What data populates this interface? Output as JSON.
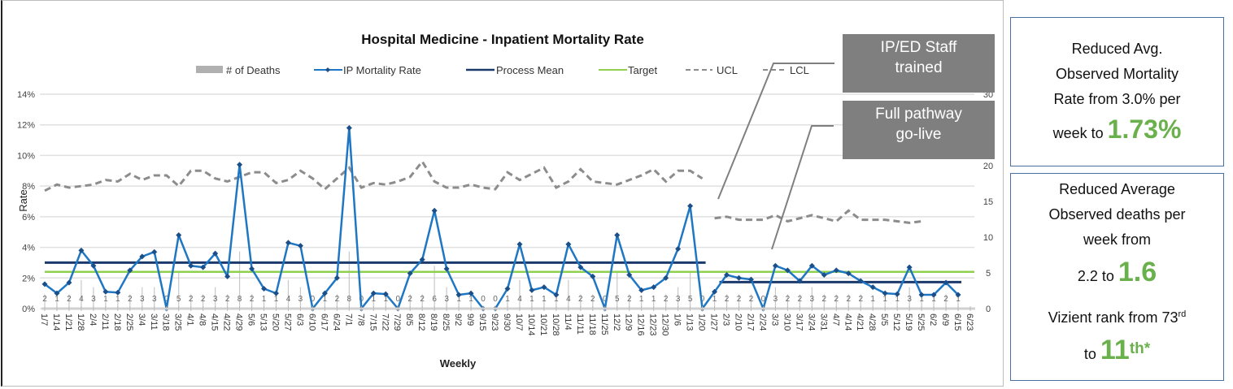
{
  "chart_data": {
    "type": "line",
    "title": "Hospital Medicine - Inpatient Mortality Rate",
    "xlabel": "Weekly",
    "ylabel": "Rate",
    "ylim": [
      0,
      14
    ],
    "y_ticks": [
      "0%",
      "2%",
      "4%",
      "6%",
      "8%",
      "10%",
      "12%",
      "14%"
    ],
    "y2lim": [
      0,
      30
    ],
    "y2_ticks": [
      "0",
      "5",
      "10",
      "15",
      "20",
      "25",
      "30"
    ],
    "grid": true,
    "legend_position": "top",
    "legend": [
      "# of Deaths",
      "IP Mortality Rate",
      "Process Mean",
      "Target",
      "UCL",
      "LCL"
    ],
    "categories": [
      "1/7",
      "1/14",
      "1/21",
      "1/28",
      "2/4",
      "2/11",
      "2/18",
      "2/25",
      "3/4",
      "3/11",
      "3/18",
      "3/25",
      "4/1",
      "4/8",
      "4/15",
      "4/22",
      "4/29",
      "5/6",
      "5/13",
      "5/20",
      "5/27",
      "6/3",
      "6/10",
      "6/17",
      "6/24",
      "7/1",
      "7/8",
      "7/15",
      "7/22",
      "7/29",
      "8/5",
      "8/12",
      "8/19",
      "8/25",
      "9/2",
      "9/9",
      "9/15",
      "9/23",
      "9/30",
      "10/7",
      "10/14",
      "10/21",
      "10/28",
      "11/4",
      "11/11",
      "11/18",
      "11/25",
      "12/2",
      "12/9",
      "12/16",
      "12/23",
      "12/30",
      "1/6",
      "1/13",
      "1/20",
      "1/27",
      "2/3",
      "2/10",
      "2/17",
      "2/24",
      "3/3",
      "3/10",
      "3/17",
      "3/24",
      "3/31",
      "4/7",
      "4/14",
      "4/21",
      "4/28",
      "5/5",
      "5/12",
      "5/19",
      "5/25",
      "6/2",
      "6/9",
      "6/15",
      "6/23"
    ],
    "phase_break_index": 55,
    "series": [
      {
        "name": "IP Mortality Rate",
        "color": "#1f77c4",
        "values": [
          1.6,
          1.0,
          1.7,
          3.8,
          2.8,
          1.1,
          1.05,
          2.5,
          3.4,
          3.7,
          0,
          4.8,
          2.8,
          2.7,
          3.6,
          2.1,
          9.4,
          2.6,
          1.3,
          1.0,
          4.3,
          4.1,
          0,
          1.0,
          2.0,
          11.8,
          0,
          1.0,
          0.95,
          0,
          2.3,
          3.2,
          6.4,
          2.6,
          0.9,
          1.0,
          0,
          0,
          1.3,
          4.2,
          1.2,
          1.4,
          0.9,
          4.2,
          2.7,
          2.1,
          0,
          4.8,
          2.2,
          1.2,
          1.4,
          2.0,
          3.9,
          6.7,
          0,
          1.1,
          2.2,
          2.0,
          1.9,
          0,
          2.8,
          2.5,
          1.8,
          2.8,
          2.2,
          2.5,
          2.3,
          1.8,
          1.4,
          1.0,
          0.95,
          2.7,
          0.9,
          0.9,
          1.7,
          0.9,
          null
        ]
      },
      {
        "name": "# of Deaths",
        "color": "#b0b0b0",
        "axis": "right",
        "values": [
          2,
          1,
          2,
          4,
          3,
          1,
          1,
          2,
          3,
          3,
          0,
          5,
          2,
          2,
          3,
          2,
          8,
          2,
          1,
          1,
          4,
          3,
          0,
          1,
          2,
          8,
          0,
          1,
          1,
          0,
          2,
          2,
          6,
          3,
          1,
          1,
          0,
          0,
          1,
          4,
          1,
          1,
          1,
          4,
          2,
          2,
          0,
          5,
          2,
          1,
          1,
          2,
          3,
          5,
          0,
          1,
          2,
          2,
          2,
          0,
          3,
          2,
          2,
          3,
          2,
          2,
          2,
          2,
          1,
          1,
          1,
          3,
          1,
          1,
          2,
          1,
          null
        ]
      },
      {
        "name": "UCL",
        "color": "#8c8c8c",
        "values": [
          7.7,
          8.1,
          7.9,
          8.0,
          8.1,
          8.4,
          8.3,
          8.8,
          8.4,
          8.7,
          8.7,
          8.0,
          9.0,
          9.0,
          8.5,
          8.3,
          8.6,
          8.9,
          8.9,
          8.2,
          8.4,
          9.0,
          8.5,
          7.8,
          8.5,
          9.2,
          7.9,
          8.2,
          8.1,
          8.3,
          8.6,
          9.6,
          8.3,
          7.9,
          7.9,
          8.1,
          7.9,
          7.8,
          8.9,
          8.4,
          8.8,
          9.2,
          7.9,
          8.3,
          9.1,
          8.3,
          8.2,
          8.1,
          8.4,
          8.7,
          9.1,
          8.3,
          9.0,
          9.0,
          8.5,
          5.9,
          6.0,
          5.8,
          5.8,
          5.8,
          6.1,
          5.7,
          5.9,
          6.1,
          5.9,
          5.7,
          6.4,
          5.8,
          5.8,
          5.8,
          5.7,
          5.6,
          5.7,
          null,
          null,
          null,
          null
        ]
      },
      {
        "name": "Process Mean",
        "color": "#1b3a6b",
        "phase_values": [
          3.0,
          1.73
        ]
      },
      {
        "name": "Target",
        "color": "#8fd14f",
        "value": 2.4
      }
    ],
    "annotations": [
      "IP/ED Staff trained",
      "Full pathway go-live"
    ]
  },
  "callouts": {
    "staff_trained": {
      "line1": "IP/ED Staff",
      "line2": "trained"
    },
    "go_live": {
      "line1": "Full pathway",
      "line2": "go-live"
    }
  },
  "stats": {
    "box1": {
      "line1": "Reduced Avg.",
      "line2": "Observed Mortality",
      "line3": "Rate from 3.0% per",
      "line4_prefix": "week to ",
      "highlight": "1.73%"
    },
    "box2": {
      "line1": "Reduced Average",
      "line2": "Observed deaths per",
      "line3": "week from",
      "line4_prefix": "2.2 to ",
      "highlight": "1.6",
      "rank_prefix": "Vizient rank from 73",
      "rank_suffix": "rd",
      "rank_to": "to ",
      "rank_highlight": "11",
      "rank_highlight_sup": "th*"
    }
  },
  "colors": {
    "accent_green": "#6ab04c",
    "rate_line": "#1f77c4",
    "mean_line": "#1b3a6b",
    "target_line": "#8fd14f",
    "ucl_line": "#8c8c8c",
    "callout_bg": "#7f7f7f",
    "box_border": "#4a6fa5"
  }
}
